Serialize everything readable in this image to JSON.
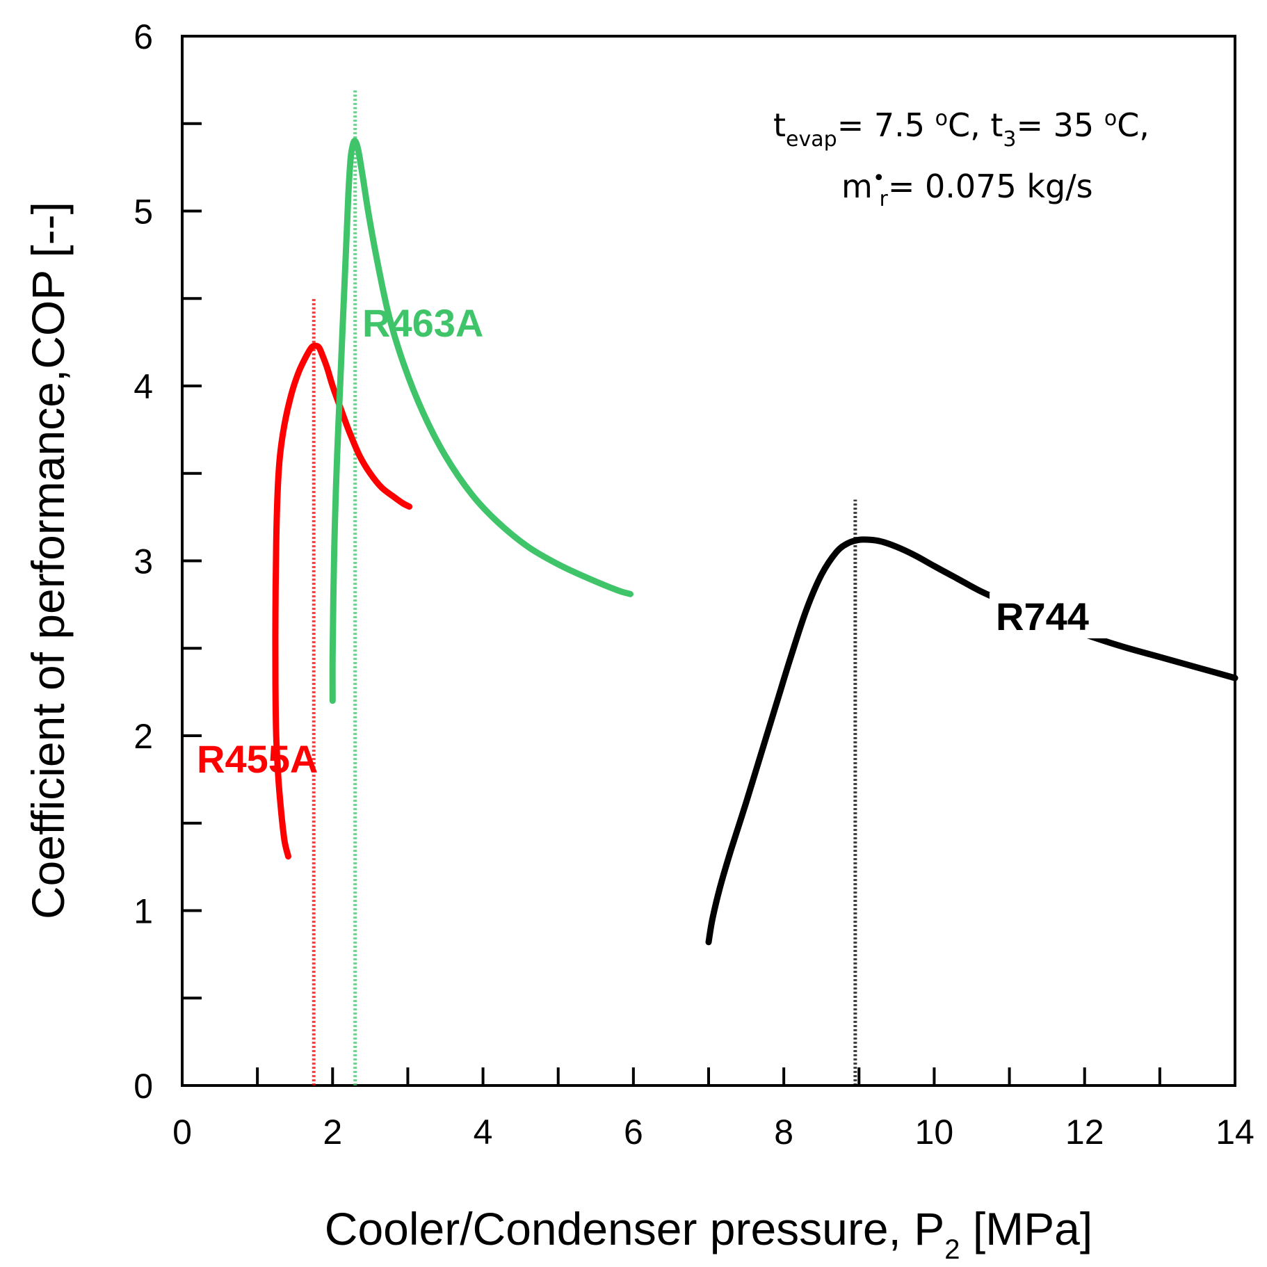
{
  "chart_data": {
    "type": "line",
    "title": "",
    "xlabel_main": "Cooler/Condenser pressure, P",
    "xlabel_sub": "2",
    "xlabel_tail": " [MPa]",
    "ylabel": "Coefficient of performance,COP [--]",
    "xlim": [
      0,
      14
    ],
    "ylim": [
      0,
      6
    ],
    "xticks": [
      0,
      2,
      4,
      6,
      8,
      10,
      12,
      14
    ],
    "yticks": [
      0,
      1,
      2,
      3,
      4,
      5,
      6
    ],
    "grid": false,
    "annotation": {
      "line1_t": "t",
      "line1_evap": "evap",
      "line1_a": "= 7.5 ",
      "line1_o1": "o",
      "line1_b": "C, t",
      "line1_3": "3",
      "line1_c": "= 35 ",
      "line1_o2": "o",
      "line1_d": "C,",
      "line2_m": "m",
      "line2_dot": "•",
      "line2_r": "r",
      "line2_e": "= 0.075 kg/s"
    },
    "series": [
      {
        "name": "R455A",
        "color": "#ff0000",
        "optimum_pressure": 1.75,
        "x": [
          1.41,
          1.36,
          1.32,
          1.28,
          1.25,
          1.24,
          1.24,
          1.25,
          1.27,
          1.3,
          1.36,
          1.45,
          1.55,
          1.65,
          1.72,
          1.77,
          1.82,
          1.87,
          1.93,
          2.0,
          2.1,
          2.22,
          2.36,
          2.5,
          2.65,
          2.8,
          2.93,
          3.02
        ],
        "y": [
          1.31,
          1.4,
          1.55,
          1.75,
          2.0,
          2.3,
          2.7,
          3.1,
          3.4,
          3.6,
          3.78,
          3.95,
          4.08,
          4.17,
          4.22,
          4.23,
          4.22,
          4.17,
          4.1,
          4.0,
          3.88,
          3.74,
          3.6,
          3.5,
          3.42,
          3.37,
          3.33,
          3.31
        ]
      },
      {
        "name": "R463A",
        "color": "#40c46a",
        "optimum_pressure": 2.3,
        "x": [
          2.0,
          2.0,
          2.01,
          2.03,
          2.06,
          2.1,
          2.14,
          2.18,
          2.21,
          2.24,
          2.27,
          2.3,
          2.34,
          2.4,
          2.48,
          2.6,
          2.75,
          2.95,
          3.2,
          3.5,
          3.85,
          4.2,
          4.6,
          5.0,
          5.4,
          5.8,
          5.96
        ],
        "y": [
          2.2,
          2.45,
          2.8,
          3.2,
          3.6,
          4.0,
          4.4,
          4.8,
          5.1,
          5.3,
          5.38,
          5.4,
          5.35,
          5.2,
          4.98,
          4.7,
          4.4,
          4.12,
          3.85,
          3.6,
          3.38,
          3.22,
          3.08,
          2.98,
          2.9,
          2.83,
          2.81
        ]
      },
      {
        "name": "R744",
        "color": "#000000",
        "optimum_pressure": 8.95,
        "x": [
          7.0,
          7.05,
          7.15,
          7.3,
          7.5,
          7.7,
          7.9,
          8.1,
          8.3,
          8.5,
          8.7,
          8.85,
          9.0,
          9.15,
          9.3,
          9.5,
          9.75,
          10.0,
          10.3,
          10.6,
          10.9,
          11.2,
          11.5,
          12.0,
          12.5,
          13.0,
          13.5,
          14.0
        ],
        "y": [
          0.82,
          0.95,
          1.13,
          1.35,
          1.62,
          1.9,
          2.18,
          2.46,
          2.72,
          2.92,
          3.05,
          3.1,
          3.12,
          3.12,
          3.11,
          3.08,
          3.03,
          2.97,
          2.9,
          2.83,
          2.77,
          2.71,
          2.66,
          2.58,
          2.51,
          2.45,
          2.39,
          2.33
        ]
      }
    ]
  }
}
